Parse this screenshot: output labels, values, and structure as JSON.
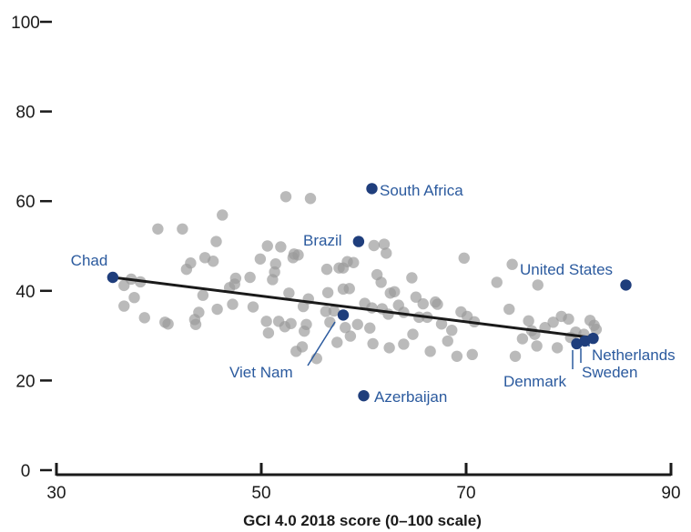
{
  "chart_data": {
    "type": "scatter",
    "xlabel": "GCI 4.0 2018 score (0–100 scale)",
    "ylabel": "",
    "xlim": [
      30,
      90
    ],
    "ylim": [
      0,
      100
    ],
    "x_ticks": [
      30,
      50,
      70,
      90
    ],
    "y_ticks": [
      0,
      20,
      40,
      60,
      80,
      100
    ],
    "grid": false,
    "colors": {
      "points": "#9a9a9a",
      "highlight": "#1f3e7c",
      "label": "#2b5a9e",
      "trend": "#1a1a1a",
      "axis": "#1a1a1a"
    },
    "trend_line": {
      "x": [
        35.5,
        82.5
      ],
      "y": [
        43,
        29.5
      ]
    },
    "points": [
      {
        "x": 36.6,
        "y": 41.2
      },
      {
        "x": 36.6,
        "y": 36.6
      },
      {
        "x": 37.3,
        "y": 42.6
      },
      {
        "x": 37.6,
        "y": 38.5
      },
      {
        "x": 38.2,
        "y": 42
      },
      {
        "x": 38.6,
        "y": 34
      },
      {
        "x": 39.9,
        "y": 53.8
      },
      {
        "x": 40.6,
        "y": 33
      },
      {
        "x": 40.9,
        "y": 32.6
      },
      {
        "x": 42.3,
        "y": 53.8
      },
      {
        "x": 42.7,
        "y": 44.8
      },
      {
        "x": 43.1,
        "y": 46.2
      },
      {
        "x": 43.5,
        "y": 33.6
      },
      {
        "x": 43.6,
        "y": 32.5
      },
      {
        "x": 43.9,
        "y": 35.2
      },
      {
        "x": 44.3,
        "y": 39
      },
      {
        "x": 44.5,
        "y": 47.4
      },
      {
        "x": 45.3,
        "y": 46.6
      },
      {
        "x": 45.6,
        "y": 51
      },
      {
        "x": 45.7,
        "y": 35.9
      },
      {
        "x": 46.2,
        "y": 56.9
      },
      {
        "x": 46.9,
        "y": 40.7
      },
      {
        "x": 47.2,
        "y": 37
      },
      {
        "x": 47.4,
        "y": 41.5
      },
      {
        "x": 47.5,
        "y": 42.8
      },
      {
        "x": 48.9,
        "y": 43
      },
      {
        "x": 49.2,
        "y": 36.4
      },
      {
        "x": 49.9,
        "y": 47.1
      },
      {
        "x": 50.5,
        "y": 33.2
      },
      {
        "x": 50.6,
        "y": 50
      },
      {
        "x": 50.7,
        "y": 30.6
      },
      {
        "x": 51.1,
        "y": 42.5
      },
      {
        "x": 51.3,
        "y": 44.2
      },
      {
        "x": 51.4,
        "y": 46
      },
      {
        "x": 51.7,
        "y": 33.2
      },
      {
        "x": 51.9,
        "y": 49.8
      },
      {
        "x": 52.3,
        "y": 32
      },
      {
        "x": 52.4,
        "y": 61
      },
      {
        "x": 52.7,
        "y": 39.5
      },
      {
        "x": 52.9,
        "y": 32.7
      },
      {
        "x": 53.1,
        "y": 47.4
      },
      {
        "x": 53.2,
        "y": 48.2
      },
      {
        "x": 53.4,
        "y": 26.5
      },
      {
        "x": 53.6,
        "y": 48
      },
      {
        "x": 54,
        "y": 27.5
      },
      {
        "x": 54.1,
        "y": 36.5
      },
      {
        "x": 54.2,
        "y": 31
      },
      {
        "x": 54.4,
        "y": 32.5
      },
      {
        "x": 54.6,
        "y": 38.2
      },
      {
        "x": 54.8,
        "y": 60.6
      },
      {
        "x": 55.4,
        "y": 24.9
      },
      {
        "x": 56.4,
        "y": 44.8
      },
      {
        "x": 56.3,
        "y": 35.4
      },
      {
        "x": 56.5,
        "y": 39.6
      },
      {
        "x": 56.7,
        "y": 33
      },
      {
        "x": 57.1,
        "y": 35.5
      },
      {
        "x": 57.4,
        "y": 28.5
      },
      {
        "x": 57.6,
        "y": 45.1
      },
      {
        "x": 58,
        "y": 40.4
      },
      {
        "x": 58,
        "y": 45.1
      },
      {
        "x": 58.2,
        "y": 31.8
      },
      {
        "x": 58.4,
        "y": 46.5
      },
      {
        "x": 58.6,
        "y": 40.5
      },
      {
        "x": 58.7,
        "y": 29.9
      },
      {
        "x": 59,
        "y": 46.3
      },
      {
        "x": 59.4,
        "y": 32.5
      },
      {
        "x": 60.1,
        "y": 37.2
      },
      {
        "x": 60.6,
        "y": 31.7
      },
      {
        "x": 60.8,
        "y": 36.2
      },
      {
        "x": 60.9,
        "y": 28.2
      },
      {
        "x": 61,
        "y": 50.1
      },
      {
        "x": 61.3,
        "y": 43.6
      },
      {
        "x": 61.7,
        "y": 41.9
      },
      {
        "x": 61.8,
        "y": 36
      },
      {
        "x": 62,
        "y": 50.4
      },
      {
        "x": 62.2,
        "y": 48.4
      },
      {
        "x": 62.4,
        "y": 34.8
      },
      {
        "x": 62.5,
        "y": 27.3
      },
      {
        "x": 62.6,
        "y": 39.5
      },
      {
        "x": 63,
        "y": 39.8
      },
      {
        "x": 63.4,
        "y": 36.8
      },
      {
        "x": 63.9,
        "y": 35.2
      },
      {
        "x": 63.9,
        "y": 28.1
      },
      {
        "x": 64.7,
        "y": 42.9
      },
      {
        "x": 64.8,
        "y": 30.3
      },
      {
        "x": 65.1,
        "y": 38.6
      },
      {
        "x": 65.4,
        "y": 34.1
      },
      {
        "x": 65.8,
        "y": 37.1
      },
      {
        "x": 66.2,
        "y": 34.1
      },
      {
        "x": 66.5,
        "y": 26.5
      },
      {
        "x": 67,
        "y": 37.5
      },
      {
        "x": 67.2,
        "y": 37
      },
      {
        "x": 67.6,
        "y": 32.6
      },
      {
        "x": 68.2,
        "y": 28.8
      },
      {
        "x": 68.6,
        "y": 31.2
      },
      {
        "x": 69.1,
        "y": 25.4
      },
      {
        "x": 69.5,
        "y": 35.3
      },
      {
        "x": 69.8,
        "y": 47.3
      },
      {
        "x": 70.1,
        "y": 34.3
      },
      {
        "x": 70.6,
        "y": 25.8
      },
      {
        "x": 70.8,
        "y": 33.1
      },
      {
        "x": 73,
        "y": 41.9
      },
      {
        "x": 74.2,
        "y": 35.9
      },
      {
        "x": 74.5,
        "y": 45.9
      },
      {
        "x": 74.8,
        "y": 25.4
      },
      {
        "x": 75.5,
        "y": 29.3
      },
      {
        "x": 76.1,
        "y": 33.3
      },
      {
        "x": 76.4,
        "y": 31.1
      },
      {
        "x": 76.7,
        "y": 30.3
      },
      {
        "x": 76.9,
        "y": 27.7
      },
      {
        "x": 77,
        "y": 41.3
      },
      {
        "x": 77.7,
        "y": 31.8
      },
      {
        "x": 78.5,
        "y": 33
      },
      {
        "x": 78.9,
        "y": 27.3
      },
      {
        "x": 79.3,
        "y": 34.3
      },
      {
        "x": 80,
        "y": 33.7
      },
      {
        "x": 80.2,
        "y": 29.6
      },
      {
        "x": 80.7,
        "y": 30.8
      },
      {
        "x": 81.5,
        "y": 30.3
      },
      {
        "x": 82.1,
        "y": 33.4
      },
      {
        "x": 82.5,
        "y": 32.3
      },
      {
        "x": 82.7,
        "y": 31.4
      }
    ],
    "highlighted": [
      {
        "name": "Chad",
        "x": 35.5,
        "y": 43
      },
      {
        "name": "South Africa",
        "x": 60.8,
        "y": 62.8
      },
      {
        "name": "Brazil",
        "x": 59.5,
        "y": 51
      },
      {
        "name": "United States",
        "x": 85.6,
        "y": 41.3
      },
      {
        "name": "Viet Nam",
        "x": 58,
        "y": 34.6
      },
      {
        "name": "Azerbaijan",
        "x": 60,
        "y": 16.6
      },
      {
        "name": "Denmark",
        "x": 80.8,
        "y": 28.2
      },
      {
        "name": "Sweden",
        "x": 81.6,
        "y": 28.8
      },
      {
        "name": "Netherlands",
        "x": 82.4,
        "y": 29.4
      }
    ]
  }
}
